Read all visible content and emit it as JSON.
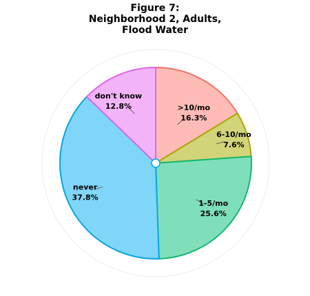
{
  "chart_data": {
    "type": "pie",
    "title_lines": [
      "Figure 7:",
      "Neighborhood 2, Adults,",
      "Flood Water"
    ],
    "start_angle_deg": 0,
    "direction": "clockwise",
    "grid": true,
    "slices": [
      {
        "label": ">10/mo",
        "value": 16.3,
        "value_text": "16.3%",
        "fill": "#ffbbb5",
        "stroke": "#f07368"
      },
      {
        "label": "6-10/mo",
        "value": 7.6,
        "value_text": "7.6%",
        "fill": "#d2d47a",
        "stroke": "#a8a800"
      },
      {
        "label": "1-5/mo",
        "value": 25.6,
        "value_text": "25.6%",
        "fill": "#80dfbb",
        "stroke": "#12b76f"
      },
      {
        "label": "never",
        "value": 37.8,
        "value_text": "37.8%",
        "fill": "#80d6f8",
        "stroke": "#05a7e8"
      },
      {
        "label": "don't know",
        "value": 12.8,
        "value_text": "12.8%",
        "fill": "#f4b4fa",
        "stroke": "#da68e6"
      }
    ]
  }
}
